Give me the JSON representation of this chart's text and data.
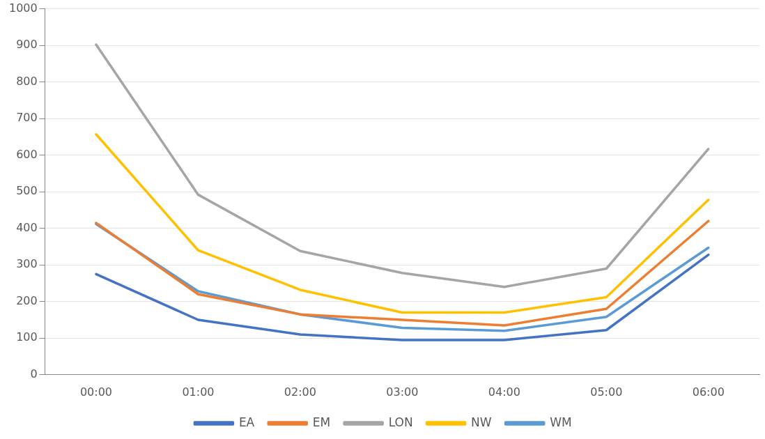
{
  "chart_data": {
    "type": "line",
    "categories": [
      "00:00",
      "01:00",
      "02:00",
      "03:00",
      "04:00",
      "05:00",
      "06:00"
    ],
    "series": [
      {
        "name": "EA",
        "color": "#4472c4",
        "values": [
          275,
          150,
          110,
          95,
          95,
          122,
          328
        ]
      },
      {
        "name": "EM",
        "color": "#ed7d31",
        "values": [
          415,
          220,
          165,
          150,
          135,
          180,
          420
        ]
      },
      {
        "name": "LON",
        "color": "#a5a5a5",
        "values": [
          902,
          492,
          338,
          278,
          240,
          290,
          617
        ]
      },
      {
        "name": "NW",
        "color": "#ffc000",
        "values": [
          657,
          340,
          232,
          170,
          170,
          212,
          478
        ]
      },
      {
        "name": "WM",
        "color": "#5b9bd5",
        "values": [
          412,
          228,
          165,
          128,
          120,
          158,
          347
        ]
      }
    ],
    "ylim": [
      0,
      1000
    ],
    "yticks": [
      0,
      100,
      200,
      300,
      400,
      500,
      600,
      700,
      800,
      900,
      1000
    ],
    "grid": "y",
    "legend": "bottom",
    "marker": "none",
    "line_style": "solid"
  }
}
